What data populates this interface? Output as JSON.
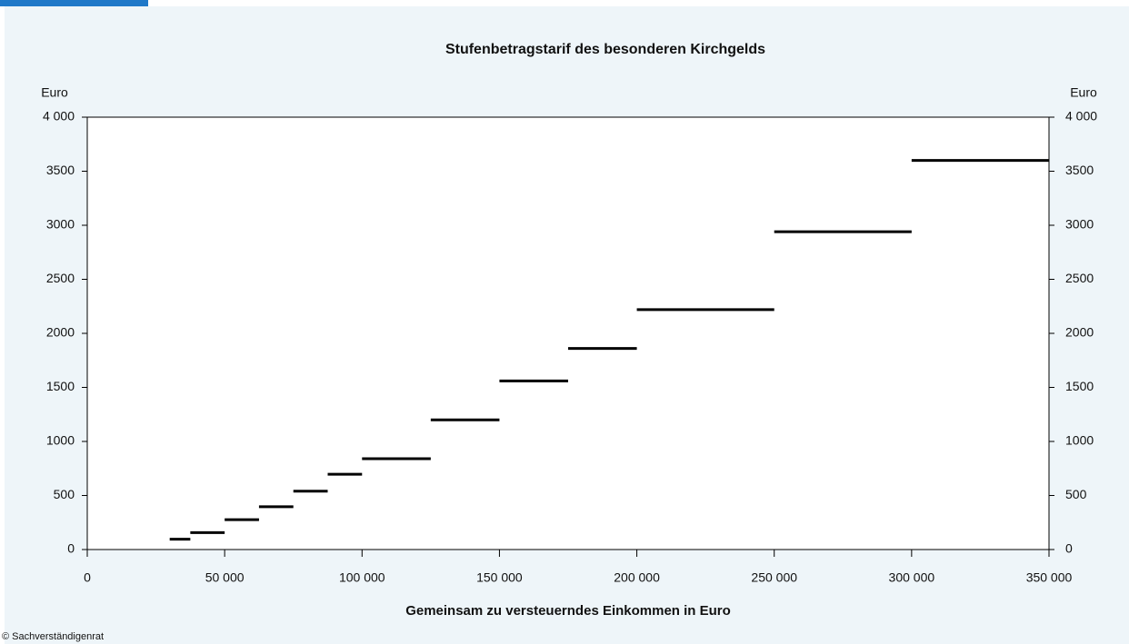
{
  "chart_data": {
    "type": "step",
    "title": "Stufenbetragstarif des besonderen Kirchgelds",
    "x_label": "Gemeinsam zu versteuerndes Einkommen in Euro",
    "y_label": "Euro",
    "source": "© Sachverständigenrat",
    "color": "#000000",
    "x_start": [
      30000,
      37500,
      50000,
      62500,
      75000,
      87500,
      100000,
      125000,
      150000,
      175000,
      200000,
      250000,
      300000
    ],
    "x_end": [
      37500,
      50000,
      62500,
      75000,
      87500,
      100000,
      125000,
      150000,
      175000,
      200000,
      250000,
      300000,
      350000
    ],
    "values": [
      96,
      156,
      276,
      396,
      540,
      696,
      840,
      1200,
      1560,
      1860,
      2220,
      2940,
      3600
    ],
    "xlim": [
      0,
      350000
    ],
    "xticks": [
      0,
      {
        "value": 50000,
        "label": "50 000"
      },
      {
        "value": 100000,
        "label": "100 000"
      },
      {
        "value": 150000,
        "label": "150 000"
      },
      {
        "value": 200000,
        "label": "200 000"
      },
      {
        "value": 250000,
        "label": "250 000"
      },
      {
        "value": 300000,
        "label": "300 000"
      },
      {
        "value": 350000,
        "label": "350 000"
      }
    ],
    "ylim": [
      0,
      4000
    ],
    "yticks": [
      0,
      500,
      1000,
      1500,
      2000,
      2500,
      3000,
      3500,
      {
        "value": 4000,
        "label": "4 000"
      }
    ],
    "grid": false
  }
}
